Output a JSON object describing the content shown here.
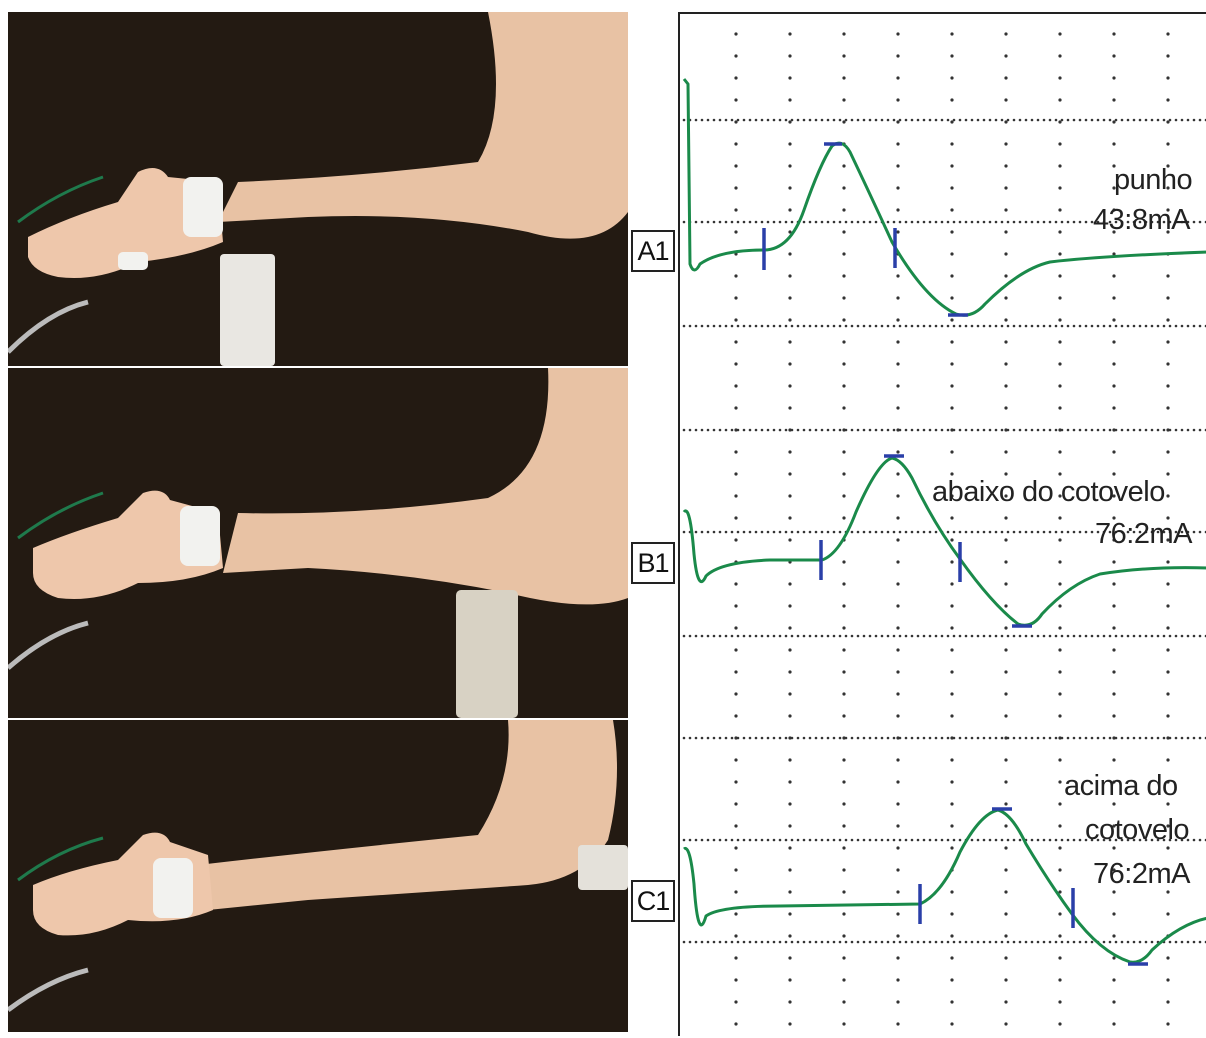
{
  "colors": {
    "waveform": "#1a8a4a",
    "markers": "#2a3fa8",
    "grid": "#333333",
    "skin": "#eac3a4",
    "background_cloth": "#221a12"
  },
  "panels": [
    {
      "id": "A1",
      "label": "A1",
      "site_label": "punho",
      "intensity": "43:8mA",
      "annotation_lines": [
        "punho",
        "43:8mA"
      ]
    },
    {
      "id": "B1",
      "label": "B1",
      "site_label": "abaixo do cotovelo",
      "intensity": "76:2mA",
      "annotation_lines": [
        "abaixo do cotovelo",
        "76:2mA"
      ]
    },
    {
      "id": "C1",
      "label": "C1",
      "site_label": "acima do cotovelo",
      "intensity": "76:2mA",
      "annotation_lines": [
        "acima do",
        "cotovelo",
        "76:2mA"
      ]
    }
  ]
}
